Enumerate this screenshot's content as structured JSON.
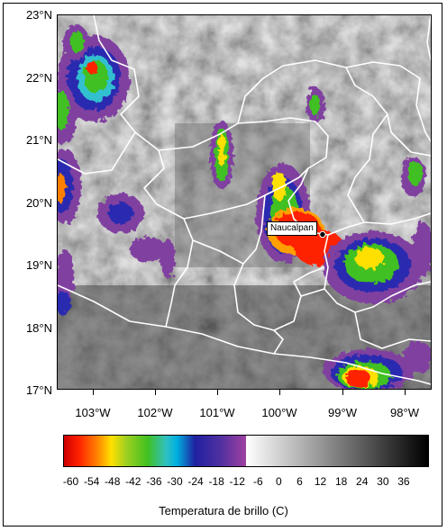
{
  "map": {
    "lat_labels": [
      "23°N",
      "22°N",
      "21°N",
      "20°N",
      "19°N",
      "18°N",
      "17°N"
    ],
    "lon_labels": [
      "103°W",
      "102°W",
      "101°W",
      "100°W",
      "99°W",
      "98°W"
    ],
    "city": {
      "name": "Naucalpan",
      "lat": 19.48,
      "lon": -99.24
    }
  },
  "colorbar": {
    "title": "Temperatura de brillo (C)",
    "tick_labels": [
      "-60",
      "-54",
      "-48",
      "-42",
      "-36",
      "-30",
      "-24",
      "-18",
      "-12",
      "-6",
      "0",
      "6",
      "12",
      "18",
      "24",
      "30",
      "36"
    ],
    "colors": {
      "cold_start": "#cc0000",
      "red": "#ff2000",
      "orange": "#ff8000",
      "yellow": "#ffe000",
      "green": "#40c020",
      "cyan": "#00b0e0",
      "blue": "#2020a0",
      "purple": "#a040a0",
      "white": "#ffffff",
      "black": "#000000"
    }
  }
}
